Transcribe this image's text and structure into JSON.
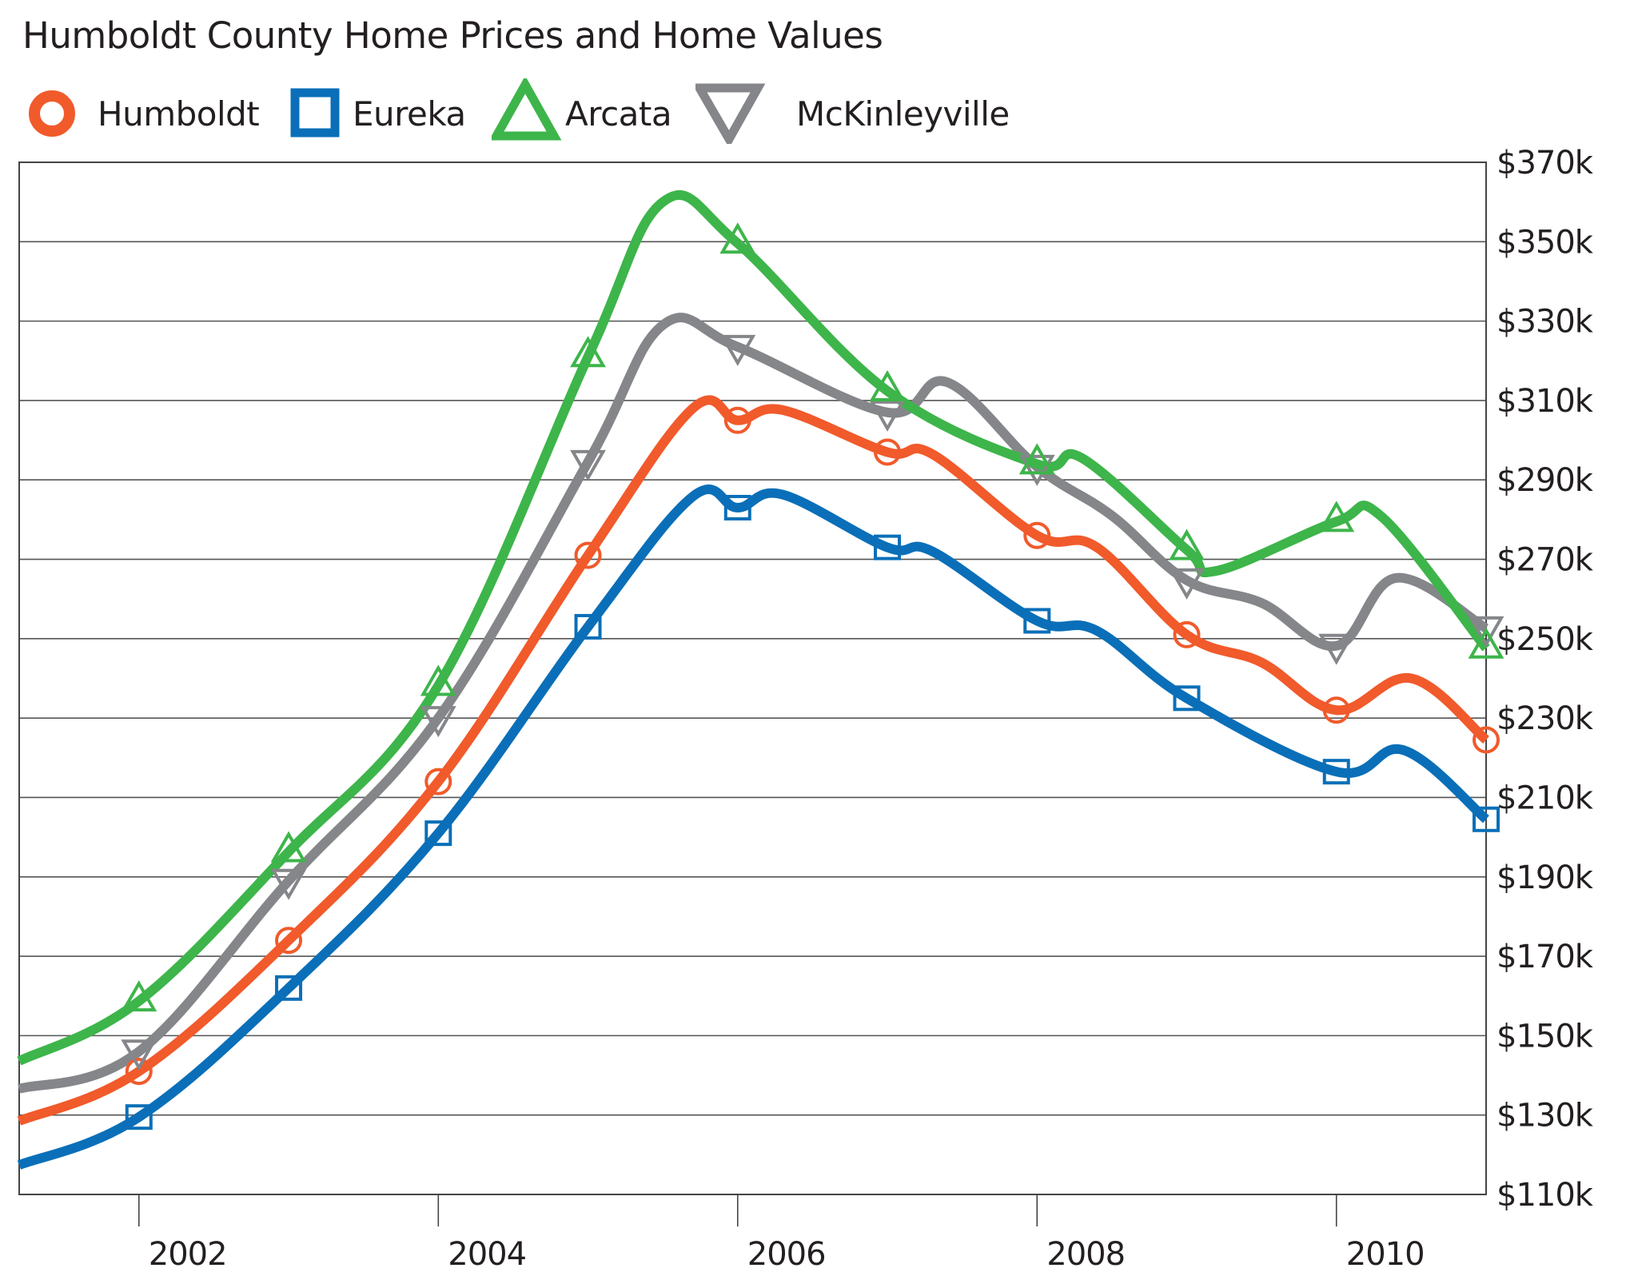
{
  "chart_data": {
    "type": "line",
    "title": "Humboldt County Home Prices and Home Values",
    "xlabel": "",
    "ylabel": "",
    "x_ticks": [
      2002,
      2004,
      2006,
      2008,
      2010
    ],
    "x_tick_labels": [
      "2002",
      "2004",
      "2006",
      "2008",
      "2010"
    ],
    "xlim": [
      2001.2,
      2011.0
    ],
    "ylim": [
      110,
      370
    ],
    "y_ticks": [
      110,
      130,
      150,
      170,
      190,
      210,
      230,
      250,
      270,
      290,
      310,
      330,
      350,
      370
    ],
    "y_tick_labels": [
      "$110k",
      "$130k",
      "$150k",
      "$170k",
      "$190k",
      "$210k",
      "$230k",
      "$250k",
      "$270k",
      "$290k",
      "$310k",
      "$330k",
      "$350k",
      "$370k"
    ],
    "y_units": "thousands of USD",
    "y_axis_position": "right",
    "grid": "horizontal",
    "legend_position": "top-left",
    "x": [
      2002,
      2003,
      2004,
      2005,
      2006,
      2007,
      2008,
      2009,
      2010,
      2011
    ],
    "series": [
      {
        "name": "Humboldt",
        "color": "#F15A2B",
        "marker": "circle",
        "values": [
          141,
          174,
          214,
          271,
          305,
          297,
          276,
          251,
          232,
          224.5
        ],
        "line_path": [
          [
            2001.2,
            128.5
          ],
          [
            2002,
            141
          ],
          [
            2003,
            174
          ],
          [
            2004,
            214
          ],
          [
            2005,
            271
          ],
          [
            2005.7,
            308
          ],
          [
            2006,
            305
          ],
          [
            2006.3,
            307.6
          ],
          [
            2007,
            297
          ],
          [
            2007.3,
            296.5
          ],
          [
            2008,
            276
          ],
          [
            2008.4,
            273
          ],
          [
            2009,
            251
          ],
          [
            2009.5,
            244
          ],
          [
            2010,
            232
          ],
          [
            2010.5,
            240
          ],
          [
            2011,
            224.5
          ]
        ]
      },
      {
        "name": "Eureka",
        "color": "#0A6FB8",
        "marker": "square",
        "values": [
          129.5,
          162,
          201,
          253,
          283,
          273,
          254.5,
          235,
          216.5,
          204.5
        ],
        "line_path": [
          [
            2001.2,
            117.4
          ],
          [
            2002,
            129.5
          ],
          [
            2003,
            162
          ],
          [
            2004,
            201
          ],
          [
            2005,
            253
          ],
          [
            2005.7,
            285.8
          ],
          [
            2006,
            283
          ],
          [
            2006.3,
            286.3
          ],
          [
            2007,
            273
          ],
          [
            2007.3,
            272
          ],
          [
            2008,
            254.5
          ],
          [
            2008.4,
            252
          ],
          [
            2009,
            235
          ],
          [
            2010,
            216.5
          ],
          [
            2010.45,
            221.9
          ],
          [
            2011,
            204.5
          ]
        ]
      },
      {
        "name": "Arcata",
        "color": "#3DB54A",
        "marker": "triangle-up",
        "values": [
          158.7,
          196.3,
          238.2,
          321,
          349.6,
          312.4,
          294,
          272.4,
          279.5,
          247.6
        ],
        "line_path": [
          [
            2001.2,
            143.6
          ],
          [
            2002,
            158.7
          ],
          [
            2003,
            196.3
          ],
          [
            2004,
            238.2
          ],
          [
            2005,
            321
          ],
          [
            2005.5,
            360
          ],
          [
            2006,
            349.6
          ],
          [
            2007,
            312.4
          ],
          [
            2008,
            294
          ],
          [
            2008.3,
            295.5
          ],
          [
            2009,
            272.4
          ],
          [
            2009.2,
            267.1
          ],
          [
            2010,
            279.5
          ],
          [
            2010.3,
            280.8
          ],
          [
            2011,
            247.6
          ]
        ]
      },
      {
        "name": "McKinleyville",
        "color": "#85868A",
        "marker": "triangle-down",
        "values": [
          146,
          189,
          230,
          294.5,
          323.5,
          307,
          293.3,
          264.7,
          248.2,
          252.6
        ],
        "line_path": [
          [
            2001.2,
            136.6
          ],
          [
            2002,
            146
          ],
          [
            2003,
            189
          ],
          [
            2004,
            230
          ],
          [
            2005,
            294.5
          ],
          [
            2005.5,
            329
          ],
          [
            2006,
            323.5
          ],
          [
            2007,
            307
          ],
          [
            2007.4,
            314.6
          ],
          [
            2008,
            293.3
          ],
          [
            2008.5,
            281
          ],
          [
            2009,
            264.7
          ],
          [
            2009.5,
            259
          ],
          [
            2010,
            248.2
          ],
          [
            2010.4,
            265.3
          ],
          [
            2011,
            252.6
          ]
        ]
      }
    ]
  }
}
